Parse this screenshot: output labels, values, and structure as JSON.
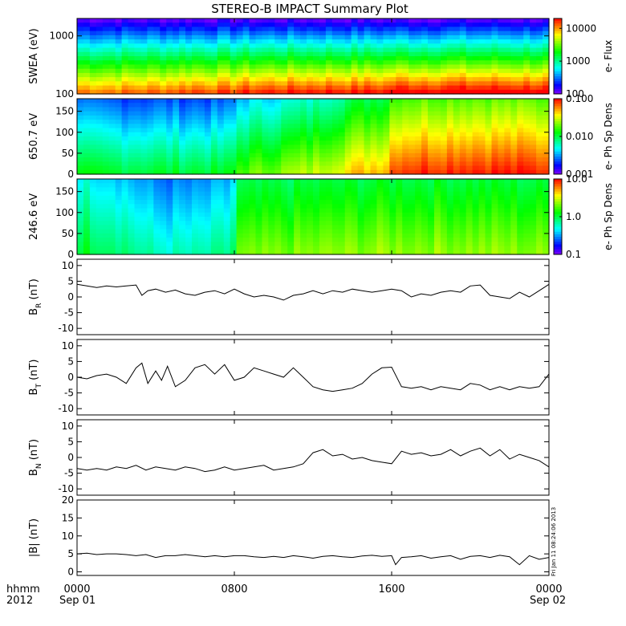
{
  "title": "STEREO-B IMPACT Summary Plot",
  "footer": {
    "time_format": "hhmm",
    "year": "2012",
    "start_date": "Sep 01",
    "end_date": "Sep 02",
    "timestamp": "Fri Jan 11 08:24:06 2013"
  },
  "x_axis": {
    "tick_hours": [
      0,
      8,
      16,
      24
    ],
    "tick_labels": [
      "0000",
      "0800",
      "1600",
      "0000"
    ],
    "range_hours": [
      0,
      24
    ]
  },
  "chart_data": [
    {
      "type": "heatmap",
      "name": "swea-spectrogram",
      "ylabel": "SWEA (eV)",
      "yscale": "log",
      "ylim": [
        100,
        2000
      ],
      "ytick_values": [
        1000,
        100
      ],
      "ytick_labels": [
        "1000",
        "100"
      ],
      "colorbar_label": "e- Flux",
      "colorbar_scale": "log",
      "colorbar_range": [
        100,
        20000
      ],
      "colorbar_ticks": [
        "10000",
        "1000",
        "100"
      ],
      "colorbar_tick_values": [
        10000,
        1000,
        100
      ],
      "time_hours": [
        0,
        2,
        4,
        6,
        7.9,
        8.1,
        10,
        12,
        14,
        15.9,
        16.1,
        18,
        20,
        22,
        24
      ],
      "spectral_shift": [
        0,
        0,
        0.05,
        0.2,
        0.15,
        0.25,
        0.3,
        0.35,
        0.35,
        0.35,
        0.5,
        0.5,
        0.5,
        0.5,
        0.5
      ]
    },
    {
      "type": "heatmap",
      "name": "pad-650-spectrogram",
      "ylabel": "650.7 eV",
      "ylim": [
        0,
        180
      ],
      "ytick_values": [
        150,
        100,
        50,
        0
      ],
      "ytick_labels": [
        "150",
        "100",
        "50",
        "0"
      ],
      "colorbar_label": "e- Ph Sp Dens",
      "colorbar_scale": "log",
      "colorbar_range": [
        0.001,
        0.1
      ],
      "colorbar_ticks": [
        "0.100",
        "0.010",
        "0.001"
      ],
      "colorbar_tick_values": [
        0.1,
        0.01,
        0.001
      ],
      "time_hours": [
        0,
        4,
        7.9,
        8.1,
        12,
        14,
        15.9,
        16.1,
        20,
        24
      ],
      "level": [
        0.35,
        0.35,
        0.35,
        0.45,
        0.55,
        0.65,
        0.7,
        0.8,
        0.82,
        0.8
      ]
    },
    {
      "type": "heatmap",
      "name": "pad-246-spectrogram",
      "ylabel": "246.6 eV",
      "ylim": [
        0,
        180
      ],
      "ytick_values": [
        150,
        100,
        50,
        0
      ],
      "ytick_labels": [
        "150",
        "100",
        "50",
        "0"
      ],
      "colorbar_label": "e- Ph Sp Dens",
      "colorbar_scale": "log",
      "colorbar_range": [
        0.1,
        10
      ],
      "colorbar_ticks": [
        "10.0",
        "1.0",
        "0.1"
      ],
      "colorbar_tick_values": [
        10,
        1,
        0.1
      ],
      "time_hours": [
        0,
        2,
        4,
        6,
        7.9,
        8.1,
        12,
        16,
        20,
        24
      ],
      "level": [
        0.45,
        0.4,
        0.3,
        0.3,
        0.35,
        0.55,
        0.58,
        0.6,
        0.6,
        0.58
      ]
    },
    {
      "type": "line",
      "name": "br",
      "ylabel_main": "B",
      "ylabel_sub": "R",
      "ylabel_unit": " (nT)",
      "ylim": [
        -12,
        12
      ],
      "ytick_values": [
        10,
        5,
        0,
        -5,
        -10
      ],
      "ytick_labels": [
        "10",
        "5",
        "0",
        "-5",
        "-10"
      ],
      "x": [
        0,
        0.5,
        1,
        1.5,
        2,
        2.5,
        3,
        3.3,
        3.6,
        4,
        4.5,
        5,
        5.5,
        6,
        6.5,
        7,
        7.5,
        8,
        8.5,
        9,
        9.5,
        10,
        10.5,
        11,
        11.5,
        12,
        12.5,
        13,
        13.5,
        14,
        14.5,
        15,
        15.5,
        16,
        16.5,
        17,
        17.5,
        18,
        18.5,
        19,
        19.5,
        20,
        20.5,
        21,
        21.5,
        22,
        22.5,
        23,
        23.5,
        24
      ],
      "y": [
        4,
        3.5,
        3,
        3.5,
        3.2,
        3.5,
        3.8,
        0.5,
        2,
        2.5,
        1.5,
        2.2,
        1,
        0.5,
        1.5,
        2,
        1,
        2.5,
        1,
        0,
        0.5,
        0,
        -1,
        0.5,
        1,
        2,
        1,
        2,
        1.5,
        2.5,
        2,
        1.5,
        2,
        2.5,
        2,
        0,
        1,
        0.5,
        1.5,
        2,
        1.5,
        3.5,
        3.8,
        0.5,
        0,
        -0.5,
        1.5,
        0,
        2,
        4
      ]
    },
    {
      "type": "line",
      "name": "bt",
      "ylabel_main": "B",
      "ylabel_sub": "T",
      "ylabel_unit": " (nT)",
      "ylim": [
        -12,
        12
      ],
      "ytick_values": [
        10,
        5,
        0,
        -5,
        -10
      ],
      "ytick_labels": [
        "10",
        "5",
        "0",
        "-5",
        "-10"
      ],
      "x": [
        0,
        0.5,
        1,
        1.5,
        2,
        2.5,
        3,
        3.3,
        3.6,
        4,
        4.3,
        4.6,
        5,
        5.5,
        6,
        6.5,
        7,
        7.5,
        8,
        8.5,
        9,
        9.5,
        10,
        10.5,
        11,
        11.5,
        12,
        12.5,
        13,
        13.5,
        14,
        14.5,
        15,
        15.5,
        16,
        16.5,
        17,
        17.5,
        18,
        18.5,
        19,
        19.5,
        20,
        20.5,
        21,
        21.5,
        22,
        22.5,
        23,
        23.5,
        24
      ],
      "y": [
        0,
        -0.5,
        0.5,
        1,
        0,
        -2,
        3,
        4.5,
        -2,
        2,
        -1,
        3.5,
        -3,
        -1,
        3,
        4,
        1,
        4,
        -1,
        0,
        3,
        2,
        1,
        0,
        3,
        0,
        -3,
        -4,
        -4.5,
        -4,
        -3.5,
        -2,
        1,
        3,
        3.2,
        -3,
        -3.5,
        -3,
        -4,
        -3,
        -3.5,
        -4,
        -2,
        -2.5,
        -4,
        -3,
        -4,
        -3,
        -3.5,
        -3,
        1
      ]
    },
    {
      "type": "line",
      "name": "bn",
      "ylabel_main": "B",
      "ylabel_sub": "N",
      "ylabel_unit": " (nT)",
      "ylim": [
        -12,
        12
      ],
      "ytick_values": [
        10,
        5,
        0,
        -5,
        -10
      ],
      "ytick_labels": [
        "10",
        "5",
        "0",
        "-5",
        "-10"
      ],
      "x": [
        0,
        0.5,
        1,
        1.5,
        2,
        2.5,
        3,
        3.5,
        4,
        4.5,
        5,
        5.5,
        6,
        6.5,
        7,
        7.5,
        8,
        8.5,
        9,
        9.5,
        10,
        10.5,
        11,
        11.5,
        12,
        12.5,
        13,
        13.5,
        14,
        14.5,
        15,
        15.5,
        16,
        16.5,
        17,
        17.5,
        18,
        18.5,
        19,
        19.5,
        20,
        20.5,
        21,
        21.5,
        22,
        22.5,
        23,
        23.5,
        24
      ],
      "y": [
        -3.5,
        -4,
        -3.5,
        -4,
        -3,
        -3.5,
        -2.5,
        -4,
        -3,
        -3.5,
        -4,
        -3,
        -3.5,
        -4.5,
        -4,
        -3,
        -4,
        -3.5,
        -3,
        -2.5,
        -4,
        -3.5,
        -3,
        -2,
        1.5,
        2.5,
        0.5,
        1,
        -0.5,
        0,
        -1,
        -1.5,
        -2,
        2,
        1,
        1.5,
        0.5,
        1,
        2.5,
        0.5,
        2,
        3,
        0.5,
        2.5,
        -0.5,
        1,
        0,
        -1,
        -3
      ]
    },
    {
      "type": "line",
      "name": "b-magnitude",
      "ylabel_main": "|B|",
      "ylabel_sub": "",
      "ylabel_unit": " (nT)",
      "ylim": [
        -1,
        20
      ],
      "ytick_values": [
        20,
        15,
        10,
        5,
        0
      ],
      "ytick_labels": [
        "20",
        "15",
        "10",
        "5",
        "0"
      ],
      "x": [
        0,
        0.5,
        1,
        1.5,
        2,
        2.5,
        3,
        3.5,
        4,
        4.5,
        5,
        5.5,
        6,
        6.5,
        7,
        7.5,
        8,
        8.5,
        9,
        9.5,
        10,
        10.5,
        11,
        11.5,
        12,
        12.5,
        13,
        13.5,
        14,
        14.5,
        15,
        15.5,
        16,
        16.2,
        16.5,
        17,
        17.5,
        18,
        18.5,
        19,
        19.5,
        20,
        20.5,
        21,
        21.5,
        22,
        22.5,
        23,
        23.5,
        24
      ],
      "y": [
        5,
        5.2,
        4.8,
        5,
        5,
        4.8,
        4.5,
        4.8,
        4,
        4.5,
        4.5,
        4.8,
        4.5,
        4.2,
        4.5,
        4.2,
        4.5,
        4.5,
        4.2,
        4,
        4.3,
        4,
        4.5,
        4.2,
        3.8,
        4.3,
        4.5,
        4.2,
        4,
        4.4,
        4.6,
        4.3,
        4.5,
        2,
        4,
        4.2,
        4.5,
        3.8,
        4.2,
        4.5,
        3.5,
        4.3,
        4.5,
        4,
        4.6,
        4.2,
        2,
        4.5,
        3.5,
        4
      ]
    }
  ]
}
